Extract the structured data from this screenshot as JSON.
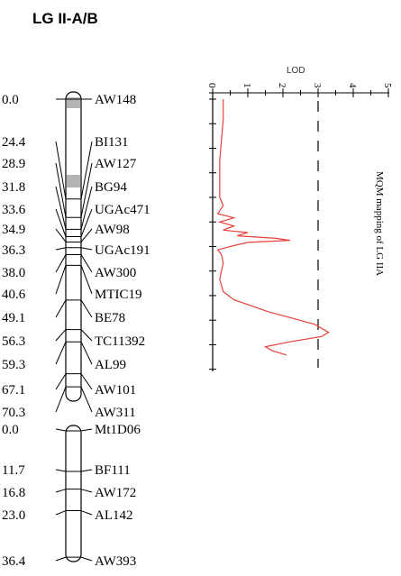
{
  "title": "LG II-A/B",
  "groupA": {
    "markers": [
      {
        "pos": "0.0",
        "name": "AW148"
      },
      {
        "pos": "24.4",
        "name": "BI131"
      },
      {
        "pos": "28.9",
        "name": "AW127"
      },
      {
        "pos": "31.8",
        "name": "BG94"
      },
      {
        "pos": "33.6",
        "name": "UGAc471"
      },
      {
        "pos": "34.9",
        "name": "AW98"
      },
      {
        "pos": "36.3",
        "name": "UGAc191"
      },
      {
        "pos": "38.0",
        "name": "AW300"
      },
      {
        "pos": "40.6",
        "name": "MTIC19"
      },
      {
        "pos": "49.1",
        "name": "BE78"
      },
      {
        "pos": "56.3",
        "name": "TC11392"
      },
      {
        "pos": "59.3",
        "name": "AL99"
      },
      {
        "pos": "67.1",
        "name": "AW101"
      },
      {
        "pos": "70.3",
        "name": "AW311"
      }
    ]
  },
  "groupB": {
    "markers": [
      {
        "pos": "0.0",
        "name": "Mt1D06"
      },
      {
        "pos": "11.7",
        "name": "BF111"
      },
      {
        "pos": "16.8",
        "name": "AW172"
      },
      {
        "pos": "23.0",
        "name": "AL142"
      },
      {
        "pos": "36.4",
        "name": "AW393"
      }
    ]
  },
  "lod_plot": {
    "axis_label": "LOD",
    "tick_labels": [
      "0",
      "1",
      "2",
      "3",
      "4",
      "5"
    ],
    "threshold": 3,
    "side_label": "MQM mapping of LG IIA",
    "curve_color": "#e8413a",
    "curve": [
      {
        "cm": 0,
        "lod": 0.3
      },
      {
        "cm": 5,
        "lod": 0.3
      },
      {
        "cm": 10,
        "lod": 0.25
      },
      {
        "cm": 15,
        "lod": 0.2
      },
      {
        "cm": 20,
        "lod": 0.2
      },
      {
        "cm": 24,
        "lod": 0.2
      },
      {
        "cm": 26,
        "lod": 0.3
      },
      {
        "cm": 28,
        "lod": 0.15
      },
      {
        "cm": 29,
        "lod": 0.6
      },
      {
        "cm": 30,
        "lod": 0.2
      },
      {
        "cm": 31,
        "lod": 0.6
      },
      {
        "cm": 32,
        "lod": 0.3
      },
      {
        "cm": 32.6,
        "lod": 1.0
      },
      {
        "cm": 33.4,
        "lod": 0.7
      },
      {
        "cm": 34.0,
        "lod": 1.8
      },
      {
        "cm": 34.5,
        "lod": 2.2
      },
      {
        "cm": 35.0,
        "lod": 1.0
      },
      {
        "cm": 35.8,
        "lod": 0.6
      },
      {
        "cm": 36.8,
        "lod": 0.15
      },
      {
        "cm": 38,
        "lod": 0.25
      },
      {
        "cm": 40,
        "lod": 0.3
      },
      {
        "cm": 44,
        "lod": 0.2
      },
      {
        "cm": 47,
        "lod": 0.3
      },
      {
        "cm": 49,
        "lod": 0.6
      },
      {
        "cm": 52,
        "lod": 1.6
      },
      {
        "cm": 55,
        "lod": 2.9
      },
      {
        "cm": 57,
        "lod": 3.3
      },
      {
        "cm": 58,
        "lod": 3.1
      },
      {
        "cm": 59.3,
        "lod": 2.2
      },
      {
        "cm": 60.5,
        "lod": 1.5
      },
      {
        "cm": 61.5,
        "lod": 1.7
      },
      {
        "cm": 62.5,
        "lod": 2.1
      }
    ]
  }
}
